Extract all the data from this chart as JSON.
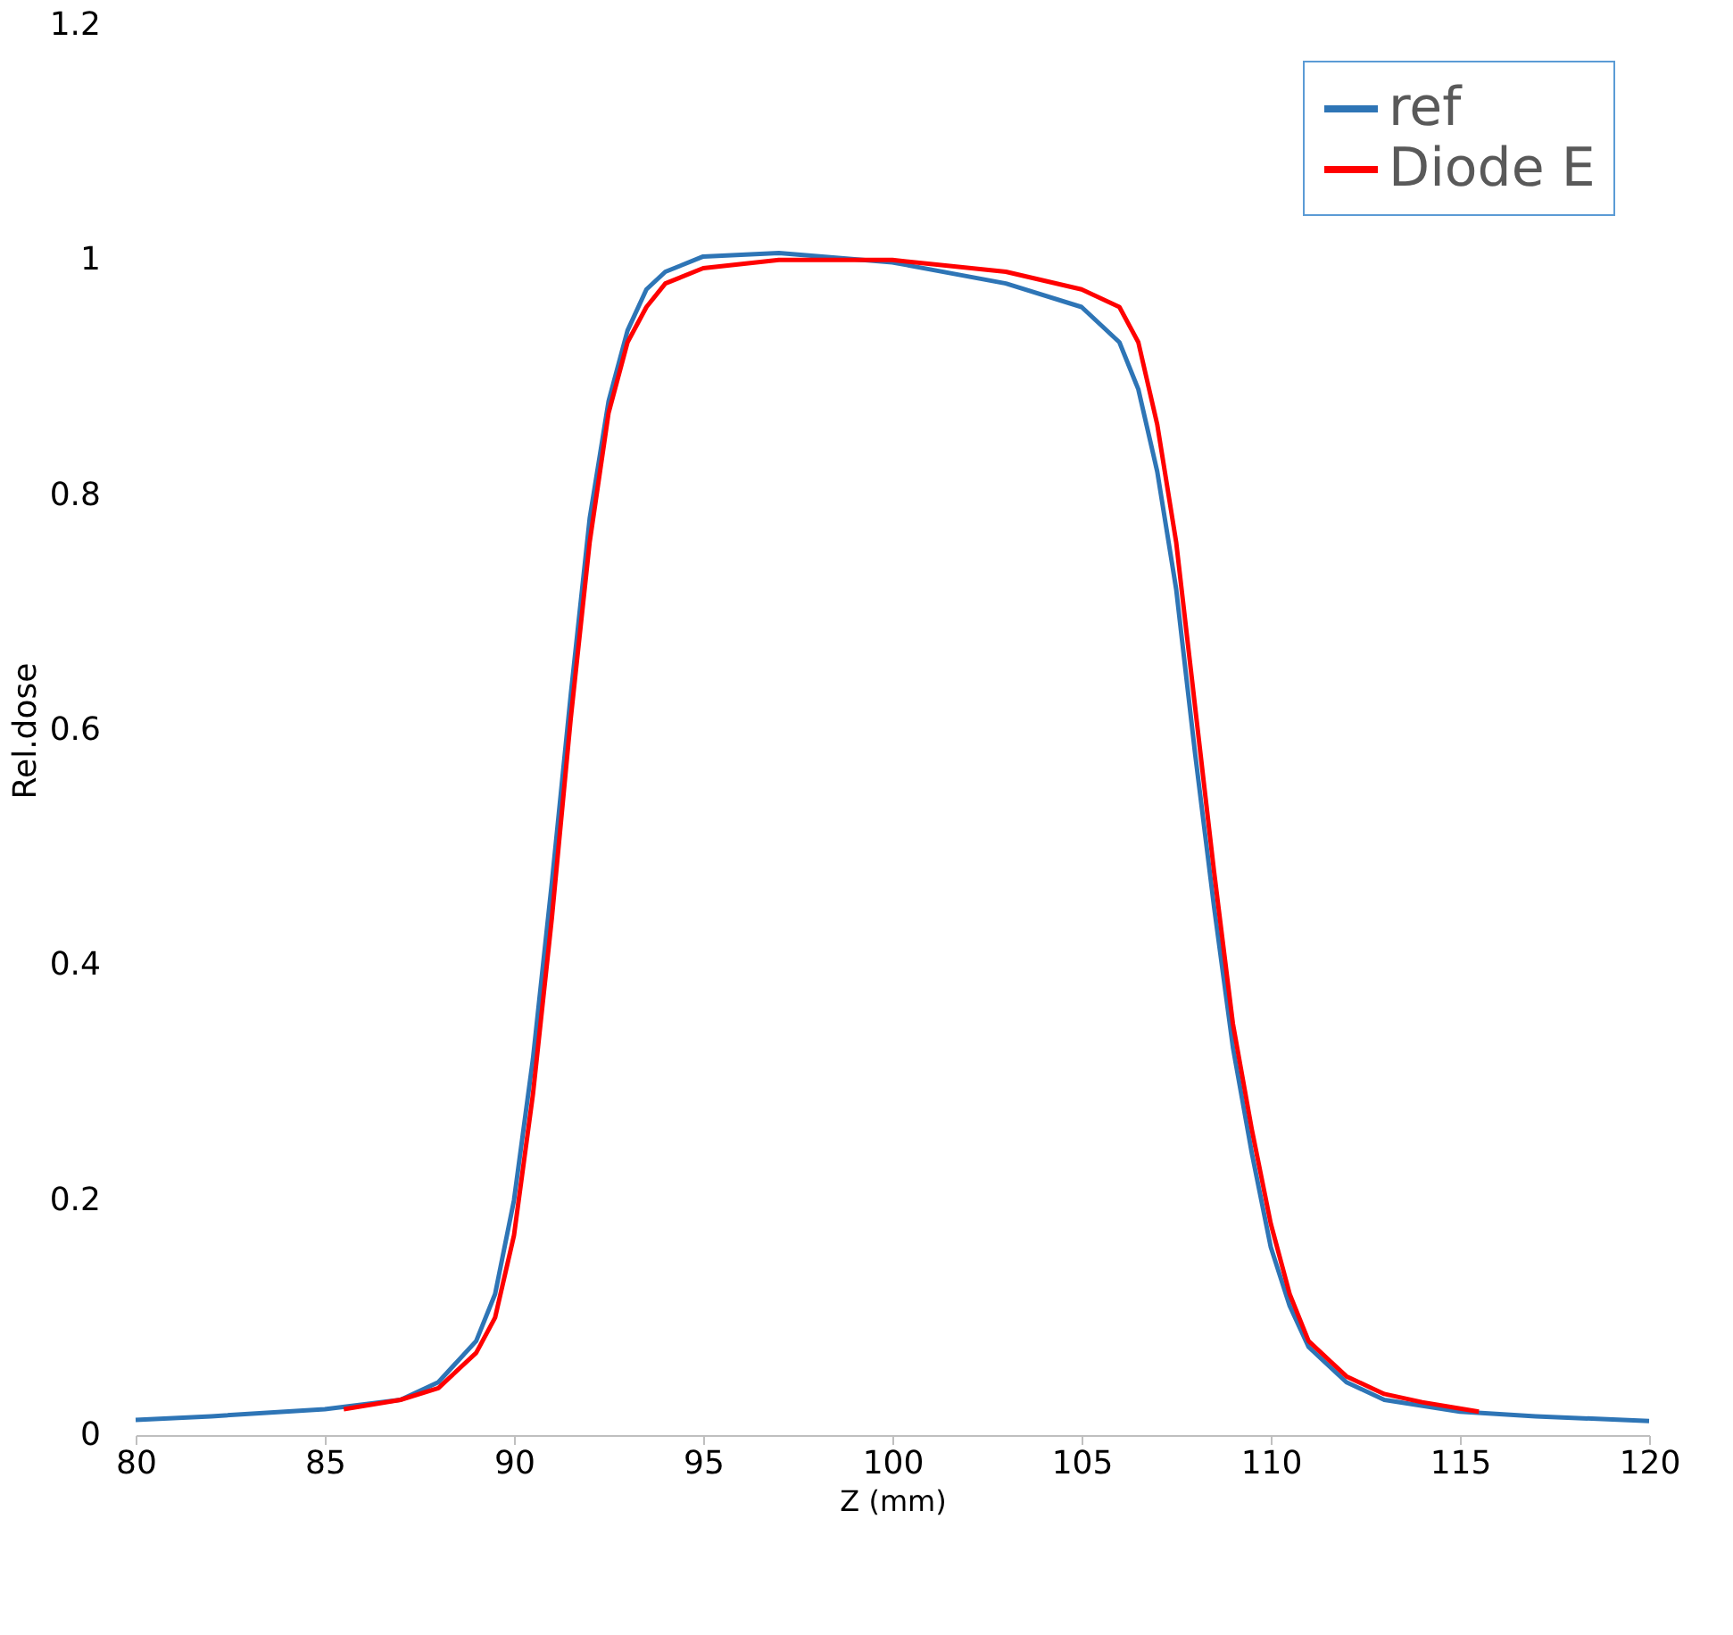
{
  "chart_data": {
    "type": "line",
    "xlabel": "Z (mm)",
    "ylabel": "Rel.dose",
    "xlim": [
      80,
      120
    ],
    "xticks": [
      80,
      85,
      90,
      95,
      100,
      105,
      110,
      115,
      120
    ],
    "ylim": [
      0,
      1.2
    ],
    "yticks": [
      0,
      0.2,
      0.4,
      0.6,
      0.8,
      1,
      1.2
    ],
    "grid": false,
    "legend": "top right",
    "marker": "none",
    "line_style": "solid",
    "series": [
      {
        "name": "ref",
        "color": "#2e75b6",
        "x": [
          80,
          82,
          85,
          87,
          88,
          89,
          89.5,
          90,
          90.5,
          91,
          91.5,
          92,
          92.5,
          93,
          93.5,
          94,
          95,
          97,
          100,
          103,
          105,
          106,
          106.5,
          107,
          107.5,
          108,
          108.5,
          109,
          109.5,
          110,
          110.5,
          111,
          112,
          113,
          115,
          117,
          120
        ],
        "values": [
          0.013,
          0.016,
          0.022,
          0.03,
          0.045,
          0.08,
          0.12,
          0.2,
          0.32,
          0.47,
          0.63,
          0.78,
          0.88,
          0.94,
          0.975,
          0.99,
          1.003,
          1.006,
          0.998,
          0.98,
          0.96,
          0.93,
          0.89,
          0.82,
          0.72,
          0.58,
          0.45,
          0.33,
          0.24,
          0.16,
          0.11,
          0.075,
          0.045,
          0.03,
          0.02,
          0.016,
          0.012
        ]
      },
      {
        "name": "Diode E",
        "color": "#ff0000",
        "x": [
          85.5,
          87,
          88,
          89,
          89.5,
          90,
          90.5,
          91,
          91.5,
          92,
          92.5,
          93,
          93.5,
          94,
          95,
          97,
          100,
          103,
          105,
          106,
          106.5,
          107,
          107.5,
          108,
          108.5,
          109,
          109.5,
          110,
          110.5,
          111,
          112,
          113,
          114,
          115.5
        ],
        "values": [
          0.022,
          0.03,
          0.04,
          0.07,
          0.1,
          0.17,
          0.29,
          0.44,
          0.61,
          0.76,
          0.87,
          0.93,
          0.96,
          0.98,
          0.993,
          1.0,
          1.0,
          0.99,
          0.975,
          0.96,
          0.93,
          0.86,
          0.76,
          0.62,
          0.48,
          0.35,
          0.26,
          0.18,
          0.12,
          0.08,
          0.05,
          0.035,
          0.028,
          0.02
        ]
      }
    ]
  }
}
